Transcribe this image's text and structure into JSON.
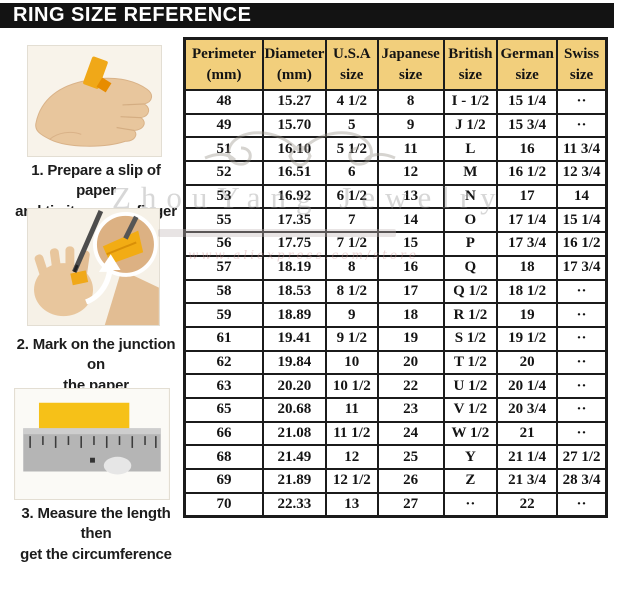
{
  "header": {
    "title": "RING SIZE REFERENCE"
  },
  "steps": [
    {
      "illustration": "hand-with-paper-strip",
      "lines": [
        "1. Prepare a slip of paper",
        "and tie it on your finger"
      ]
    },
    {
      "illustration": "pen-marking-with-magnifier",
      "lines": [
        "2. Mark on the junction on",
        "the paper"
      ]
    },
    {
      "illustration": "ruler-measuring-paper",
      "lines": [
        "3. Measure the length then",
        "get the circumference"
      ]
    }
  ],
  "chart_data": {
    "type": "table",
    "title": "RING SIZE REFERENCE",
    "columns": [
      "Perimeter (mm)",
      "Diameter (mm)",
      "U.S.A size",
      "Japanese size",
      "British size",
      "German size",
      "Swiss size"
    ],
    "column_lines": [
      [
        "Perimeter",
        "(mm)"
      ],
      [
        "Diameter",
        "(mm)"
      ],
      [
        "U.S.A",
        "size"
      ],
      [
        "Japanese",
        "size"
      ],
      [
        "British",
        "size"
      ],
      [
        "German",
        "size"
      ],
      [
        "Swiss",
        "size"
      ]
    ],
    "rows": [
      [
        "48",
        "15.27",
        "4 1/2",
        "8",
        "I - 1/2",
        "15 1/4",
        "··"
      ],
      [
        "49",
        "15.70",
        "5",
        "9",
        "J 1/2",
        "15 3/4",
        "··"
      ],
      [
        "51",
        "16.10",
        "5 1/2",
        "11",
        "L",
        "16",
        "11 3/4"
      ],
      [
        "52",
        "16.51",
        "6",
        "12",
        "M",
        "16 1/2",
        "12 3/4"
      ],
      [
        "53",
        "16.92",
        "6 1/2",
        "13",
        "N",
        "17",
        "14"
      ],
      [
        "55",
        "17.35",
        "7",
        "14",
        "O",
        "17 1/4",
        "15 1/4"
      ],
      [
        "56",
        "17.75",
        "7 1/2",
        "15",
        "P",
        "17 3/4",
        "16 1/2"
      ],
      [
        "57",
        "18.19",
        "8",
        "16",
        "Q",
        "18",
        "17 3/4"
      ],
      [
        "58",
        "18.53",
        "8 1/2",
        "17",
        "Q 1/2",
        "18 1/2",
        "··"
      ],
      [
        "59",
        "18.89",
        "9",
        "18",
        "R 1/2",
        "19",
        "··"
      ],
      [
        "61",
        "19.41",
        "9 1/2",
        "19",
        "S 1/2",
        "19 1/2",
        "··"
      ],
      [
        "62",
        "19.84",
        "10",
        "20",
        "T 1/2",
        "20",
        "··"
      ],
      [
        "63",
        "20.20",
        "10 1/2",
        "22",
        "U 1/2",
        "20 1/4",
        "··"
      ],
      [
        "65",
        "20.68",
        "11",
        "23",
        "V 1/2",
        "20 3/4",
        "··"
      ],
      [
        "66",
        "21.08",
        "11 1/2",
        "24",
        "W 1/2",
        "21",
        "··"
      ],
      [
        "68",
        "21.49",
        "12",
        "25",
        "Y",
        "21 1/4",
        "27 1/2"
      ],
      [
        "69",
        "21.89",
        "12 1/2",
        "26",
        "Z",
        "21 3/4",
        "28 3/4"
      ],
      [
        "70",
        "22.33",
        "13",
        "27",
        "··",
        "22",
        "··"
      ]
    ]
  },
  "watermark": {
    "brand": "ZhouYang Jewelry",
    "url": "www.aliexpress.com/store"
  },
  "colors": {
    "title_bar_bg": "#131313",
    "title_text": "#ffffff",
    "table_header_bg": "#f2cf7c",
    "table_border": "#1b1b1b",
    "paper_yellow": "#f3ae16",
    "page_bg": "#ffffff"
  }
}
